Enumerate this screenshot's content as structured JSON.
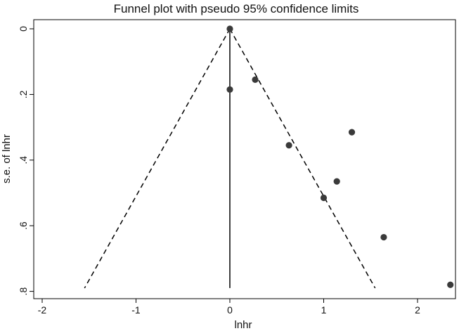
{
  "chart_data": {
    "type": "scatter",
    "title": "Funnel plot with pseudo 95% confidence limits",
    "xlabel": "lnhr",
    "ylabel": "s.e. of lnhr",
    "xlim": [
      -2.1,
      2.4
    ],
    "ylim": [
      0,
      0.8
    ],
    "y_reversed": true,
    "grid": false,
    "x_ticks": [
      -2,
      -1,
      0,
      1,
      2
    ],
    "x_tick_labels": [
      "-2",
      "-1",
      "0",
      "1",
      "2"
    ],
    "y_ticks": [
      0,
      0.2,
      0.4,
      0.6,
      0.8
    ],
    "y_tick_labels": [
      "0",
      ".2",
      ".4",
      ".6",
      ".8"
    ],
    "pooled_estimate": 0,
    "funnel_se_max": 0.79,
    "funnel_z": 1.96,
    "points": [
      {
        "x": 0.0,
        "y": 0.0
      },
      {
        "x": 0.0,
        "y": 0.185
      },
      {
        "x": 0.27,
        "y": 0.155
      },
      {
        "x": 1.3,
        "y": 0.315
      },
      {
        "x": 0.63,
        "y": 0.355
      },
      {
        "x": 1.14,
        "y": 0.465
      },
      {
        "x": 1.0,
        "y": 0.515
      },
      {
        "x": 1.64,
        "y": 0.635
      },
      {
        "x": 2.35,
        "y": 0.78
      }
    ],
    "point_color": "#3a3a3a",
    "line_color": "#000000"
  }
}
